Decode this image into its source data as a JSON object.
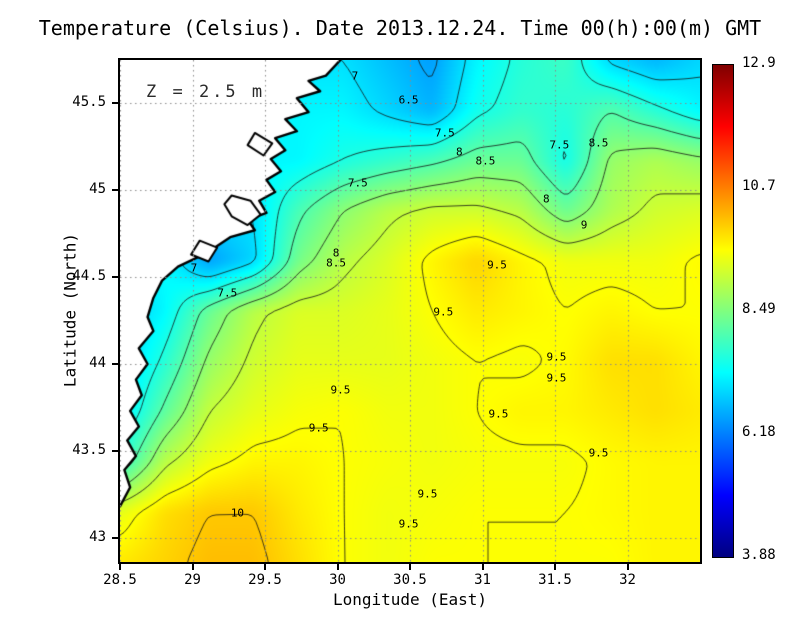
{
  "title": "Temperature (Celsius). Date 2013.12.24. Time 00(h):00(m) GMT",
  "annotation": "Z = 2.5 m",
  "axes": {
    "x": {
      "label": "Longitude (East)",
      "min": 28.5,
      "max": 32.5,
      "ticks": [
        "28.5",
        "29",
        "29.5",
        "30",
        "30.5",
        "31",
        "31.5",
        "32"
      ]
    },
    "y": {
      "label": "Latitude (North)",
      "min": 42.86,
      "max": 45.75,
      "ticks": [
        "43",
        "43.5",
        "44",
        "44.5",
        "45",
        "45.5"
      ]
    }
  },
  "colorbar": {
    "min": 3.88,
    "max": 12.9,
    "tick_labels": [
      "12.9",
      "10.7",
      "8.49",
      "6.18",
      "3.88"
    ],
    "stops": [
      {
        "frac": 0.0,
        "color": "#000080"
      },
      {
        "frac": 0.125,
        "color": "#0000ff"
      },
      {
        "frac": 0.375,
        "color": "#00ffff"
      },
      {
        "frac": 0.625,
        "color": "#ffff00"
      },
      {
        "frac": 0.875,
        "color": "#ff0000"
      },
      {
        "frac": 1.0,
        "color": "#800000"
      }
    ]
  },
  "chart_data": {
    "type": "heatmap",
    "quantity": "Temperature",
    "units": "Celsius",
    "depth": "2.5 m",
    "datetime": "2013.12.24 00:00 GMT",
    "lon": [
      28.5,
      28.808,
      29.115,
      29.423,
      29.731,
      30.038,
      30.346,
      30.654,
      30.962,
      31.269,
      31.577,
      31.885,
      32.192,
      32.5
    ],
    "lat": [
      42.86,
      43.149,
      43.438,
      43.727,
      44.016,
      44.305,
      44.594,
      44.883,
      45.172,
      45.461,
      45.75
    ],
    "temperature": [
      [
        9.7,
        9.9,
        10.1,
        10.1,
        9.8,
        9.5,
        9.4,
        9.5,
        9.5,
        9.5,
        9.5,
        9.5,
        9.6,
        9.6
      ],
      [
        9.3,
        9.8,
        10.0,
        10.0,
        9.7,
        9.5,
        9.4,
        9.45,
        9.5,
        9.5,
        9.5,
        9.55,
        9.6,
        9.6
      ],
      [
        7.6,
        8.9,
        9.4,
        9.6,
        9.6,
        9.5,
        9.45,
        9.4,
        9.45,
        9.45,
        9.45,
        9.55,
        9.6,
        9.6
      ],
      [
        7.0,
        8.1,
        9.0,
        9.3,
        9.45,
        9.5,
        9.4,
        9.4,
        9.5,
        9.6,
        9.6,
        9.7,
        9.8,
        9.7
      ],
      [
        6.8,
        7.6,
        8.6,
        9.1,
        9.3,
        9.3,
        9.3,
        9.4,
        9.5,
        9.45,
        9.55,
        9.8,
        9.8,
        9.6
      ],
      [
        6.8,
        7.2,
        8.2,
        8.9,
        9.2,
        9.2,
        9.3,
        9.5,
        9.7,
        9.6,
        9.5,
        9.6,
        9.5,
        9.5
      ],
      [
        6.9,
        7.3,
        6.4,
        6.9,
        8.3,
        8.9,
        9.2,
        9.6,
        9.9,
        9.6,
        9.4,
        9.4,
        9.4,
        9.55
      ],
      [
        7.0,
        7.0,
        7.0,
        7.0,
        7.9,
        8.5,
        8.9,
        9.1,
        9.1,
        8.9,
        8.2,
        8.8,
        9.1,
        9.2
      ],
      [
        7.2,
        7.2,
        7.2,
        7.2,
        7.2,
        7.5,
        7.7,
        7.9,
        8.2,
        8.2,
        7.4,
        8.6,
        8.8,
        8.6
      ],
      [
        7.2,
        7.2,
        7.2,
        7.2,
        7.2,
        7.2,
        6.9,
        6.6,
        7.4,
        7.7,
        7.6,
        8.0,
        7.6,
        7.2
      ],
      [
        7.0,
        7.0,
        7.0,
        7.0,
        7.0,
        7.0,
        6.7,
        6.4,
        7.2,
        7.6,
        7.8,
        6.9,
        6.6,
        6.9
      ]
    ],
    "contour_levels": [
      6.5,
      7,
      7.5,
      8,
      8.5,
      9,
      9.5,
      10
    ],
    "contour_labels": [
      {
        "t": "7",
        "lon": 30.12,
        "lat": 45.66
      },
      {
        "t": "6.5",
        "lon": 30.49,
        "lat": 45.52
      },
      {
        "t": "7.5",
        "lon": 30.74,
        "lat": 45.33
      },
      {
        "t": "8",
        "lon": 30.84,
        "lat": 45.22
      },
      {
        "t": "8.5",
        "lon": 31.02,
        "lat": 45.17
      },
      {
        "t": "7.5",
        "lon": 31.53,
        "lat": 45.26
      },
      {
        "t": "8.5",
        "lon": 31.8,
        "lat": 45.27
      },
      {
        "t": "7.5",
        "lon": 30.14,
        "lat": 45.04
      },
      {
        "t": "8",
        "lon": 31.44,
        "lat": 44.95
      },
      {
        "t": "9",
        "lon": 31.7,
        "lat": 44.8
      },
      {
        "t": "8",
        "lon": 29.99,
        "lat": 44.64
      },
      {
        "t": "8.5",
        "lon": 29.99,
        "lat": 44.58
      },
      {
        "t": "9.5",
        "lon": 31.1,
        "lat": 44.57
      },
      {
        "t": "7",
        "lon": 29.01,
        "lat": 44.55
      },
      {
        "t": "7.5",
        "lon": 29.24,
        "lat": 44.41
      },
      {
        "t": "9.5",
        "lon": 30.73,
        "lat": 44.3
      },
      {
        "t": "9.5",
        "lon": 31.51,
        "lat": 44.04
      },
      {
        "t": "9.5",
        "lon": 31.51,
        "lat": 43.92
      },
      {
        "t": "9.5",
        "lon": 30.02,
        "lat": 43.85
      },
      {
        "t": "9.5",
        "lon": 31.11,
        "lat": 43.71
      },
      {
        "t": "9.5",
        "lon": 29.87,
        "lat": 43.63
      },
      {
        "t": "9.5",
        "lon": 31.8,
        "lat": 43.49
      },
      {
        "t": "9.5",
        "lon": 30.62,
        "lat": 43.25
      },
      {
        "t": "10",
        "lon": 29.31,
        "lat": 43.14
      },
      {
        "t": "9.5",
        "lon": 30.49,
        "lat": 43.08
      }
    ],
    "land_polygon": [
      [
        30.02,
        45.75
      ],
      [
        29.92,
        45.66
      ],
      [
        29.8,
        45.63
      ],
      [
        29.88,
        45.57
      ],
      [
        29.72,
        45.53
      ],
      [
        29.8,
        45.45
      ],
      [
        29.64,
        45.41
      ],
      [
        29.72,
        45.34
      ],
      [
        29.57,
        45.3
      ],
      [
        29.64,
        45.23
      ],
      [
        29.54,
        45.18
      ],
      [
        29.61,
        45.11
      ],
      [
        29.51,
        45.06
      ],
      [
        29.57,
        44.99
      ],
      [
        29.46,
        44.94
      ],
      [
        29.51,
        44.87
      ],
      [
        29.38,
        44.83
      ],
      [
        29.43,
        44.77
      ],
      [
        29.26,
        44.73
      ],
      [
        29.1,
        44.64
      ],
      [
        28.9,
        44.56
      ],
      [
        28.79,
        44.48
      ],
      [
        28.73,
        44.38
      ],
      [
        28.69,
        44.27
      ],
      [
        28.73,
        44.19
      ],
      [
        28.63,
        44.09
      ],
      [
        28.69,
        44.0
      ],
      [
        28.61,
        43.91
      ],
      [
        28.65,
        43.82
      ],
      [
        28.57,
        43.73
      ],
      [
        28.63,
        43.64
      ],
      [
        28.55,
        43.56
      ],
      [
        28.61,
        43.47
      ],
      [
        28.53,
        43.39
      ],
      [
        28.57,
        43.29
      ],
      [
        28.5,
        43.18
      ]
    ],
    "lakes": [
      [
        [
          29.27,
          44.97
        ],
        [
          29.4,
          44.94
        ],
        [
          29.47,
          44.86
        ],
        [
          29.38,
          44.8
        ],
        [
          29.27,
          44.85
        ],
        [
          29.22,
          44.92
        ]
      ],
      [
        [
          29.05,
          44.71
        ],
        [
          29.17,
          44.67
        ],
        [
          29.11,
          44.59
        ],
        [
          28.99,
          44.63
        ]
      ],
      [
        [
          29.43,
          45.33
        ],
        [
          29.55,
          45.27
        ],
        [
          29.49,
          45.2
        ],
        [
          29.38,
          45.26
        ]
      ]
    ],
    "grid_on": true
  }
}
